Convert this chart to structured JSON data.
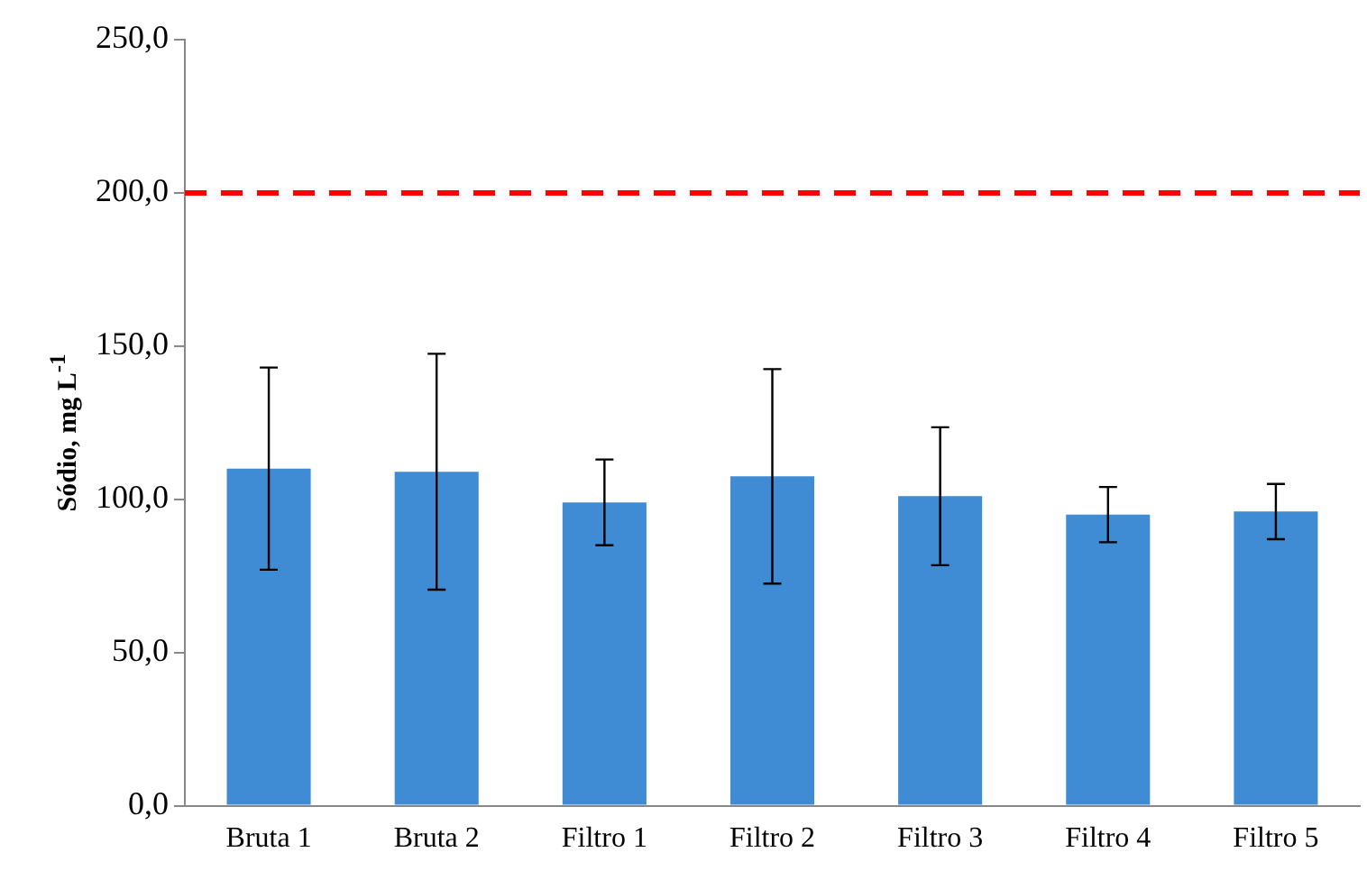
{
  "chart_data": {
    "type": "bar",
    "ylabel": "Sódio, mg L$^{-1}$",
    "categories": [
      "Bruta 1",
      "Bruta 2",
      "Filtro 1",
      "Filtro 2",
      "Filtro 3",
      "Filtro 4",
      "Filtro 5"
    ],
    "values": [
      110,
      109,
      99,
      107.5,
      101,
      95,
      96
    ],
    "errors": [
      33,
      38.5,
      14,
      35,
      22.5,
      9,
      9
    ],
    "color": "#3f8bd4",
    "ylim": [
      0,
      250
    ],
    "yticks": [
      {
        "value": 0,
        "label": "0,0"
      },
      {
        "value": 50,
        "label": "50,0"
      },
      {
        "value": 100,
        "label": "100,0"
      },
      {
        "value": 150,
        "label": "150,0"
      },
      {
        "value": 200,
        "label": "200,0"
      },
      {
        "value": 250,
        "label": "250,0"
      }
    ],
    "ref_lines": [
      {
        "axis": "y",
        "value": 200,
        "color": "#ff0000",
        "line_style": "dashed"
      }
    ],
    "grid": false,
    "legend": false
  }
}
